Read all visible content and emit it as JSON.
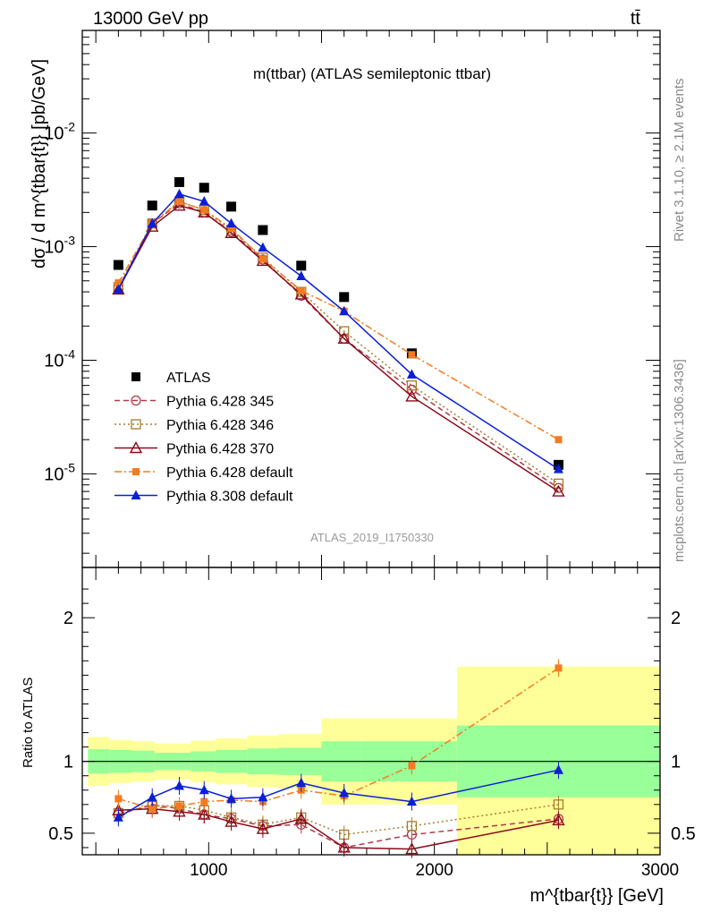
{
  "header": {
    "energy_label": "13000 GeV pp",
    "process_label": "tt̄",
    "plot_title": "m(ttbar) (ATLAS semileptonic ttbar)",
    "analysis_id": "ATLAS_2019_I1750330",
    "side_rivet": "Rivet 3.1.10, ≥ 2.1M events",
    "side_source": "mcplots.cern.ch [arXiv:1306.3436]"
  },
  "axes": {
    "main_ylabel": "dσ / d m^{tbar{t}} [pb/GeV]",
    "ratio_ylabel": "Ratio to ATLAS",
    "xlabel": "m^{tbar{t}} [GeV]"
  },
  "chart_data": [
    {
      "type": "scatter",
      "panel": "main",
      "title": "m(ttbar) (ATLAS semileptonic ttbar)",
      "xlabel": "m^{tbar{t}} [GeV]",
      "ylabel": "dσ / d m^{tbar{t}} [pb/GeV]",
      "yscale": "log",
      "xlim": [
        440,
        3000
      ],
      "ylim": [
        1.5e-06,
        0.08
      ],
      "ytick_labels": [
        "10^{-5}",
        "10^{-4}",
        "10^{-3}",
        "10^{-2}"
      ],
      "legend_position": "middle-left",
      "x": [
        600,
        750,
        870,
        980,
        1100,
        1240,
        1410,
        1600,
        1900,
        2550
      ],
      "series": [
        {
          "name": "ATLAS",
          "color": "#000000",
          "marker": "square-filled",
          "line": "none",
          "values": [
            0.00069,
            0.0023,
            0.0037,
            0.0033,
            0.00225,
            0.0014,
            0.00068,
            0.00036,
            0.000115,
            1.2e-05
          ]
        },
        {
          "name": "Pythia 6.428 345",
          "color": "#b03a48",
          "marker": "circle-open",
          "line": "dashed",
          "values": [
            0.00043,
            0.0016,
            0.0024,
            0.002,
            0.00135,
            0.00077,
            0.00037,
            0.000155,
            5.5e-05,
            7.5e-06
          ]
        },
        {
          "name": "Pythia 6.428 346",
          "color": "#a87b2c",
          "marker": "square-open",
          "line": "dotted",
          "values": [
            0.00044,
            0.0016,
            0.0025,
            0.0021,
            0.0014,
            0.0008,
            0.0004,
            0.00018,
            6e-05,
            8.2e-06
          ]
        },
        {
          "name": "Pythia 6.428 370",
          "color": "#8b0a1a",
          "marker": "triangle-open",
          "line": "solid",
          "values": [
            0.00042,
            0.0015,
            0.0023,
            0.002,
            0.00132,
            0.00075,
            0.00038,
            0.000155,
            4.8e-05,
            7e-06
          ]
        },
        {
          "name": "Pythia 6.428 default",
          "color": "#f47b20",
          "marker": "square-filled-small",
          "line": "dashdot",
          "values": [
            0.00048,
            0.0016,
            0.0025,
            0.0021,
            0.00145,
            0.00078,
            0.00041,
            0.00027,
            0.000112,
            2e-05
          ]
        },
        {
          "name": "Pythia 8.308 default",
          "color": "#0b1fd6",
          "marker": "triangle-filled",
          "line": "solid",
          "values": [
            0.00042,
            0.0016,
            0.0029,
            0.0025,
            0.0016,
            0.00098,
            0.00055,
            0.00027,
            7.5e-05,
            1.1e-05
          ]
        }
      ]
    },
    {
      "type": "line",
      "panel": "ratio",
      "xlabel": "m^{tbar{t}} [GeV]",
      "ylabel": "Ratio to ATLAS",
      "xlim": [
        440,
        3000
      ],
      "ylim": [
        0.35,
        2.35
      ],
      "ytick_labels": [
        "0.5",
        "1",
        "2"
      ],
      "xtick_labels": [
        "1000",
        "2000",
        "3000"
      ],
      "reference_line": 1,
      "bands": [
        {
          "x": [
            465,
            560,
            660,
            760,
            920,
            1030,
            1170,
            1310,
            1500,
            1680,
            2100,
            3000
          ],
          "green": [
            [
              0.915,
              1.085
            ],
            [
              0.92,
              1.08
            ],
            [
              0.925,
              1.075
            ],
            [
              0.94,
              1.06
            ],
            [
              0.93,
              1.07
            ],
            [
              0.92,
              1.08
            ],
            [
              0.91,
              1.09
            ],
            [
              0.905,
              1.095
            ],
            [
              0.86,
              1.14
            ],
            [
              0.86,
              1.14
            ],
            [
              0.75,
              1.25
            ]
          ],
          "yellow": [
            [
              0.83,
              1.17
            ],
            [
              0.85,
              1.15
            ],
            [
              0.86,
              1.14
            ],
            [
              0.875,
              1.125
            ],
            [
              0.855,
              1.145
            ],
            [
              0.84,
              1.16
            ],
            [
              0.82,
              1.18
            ],
            [
              0.81,
              1.19
            ],
            [
              0.7,
              1.3
            ],
            [
              0.7,
              1.3
            ],
            [
              0.35,
              1.66
            ]
          ]
        }
      ],
      "x": [
        600,
        750,
        870,
        980,
        1100,
        1240,
        1410,
        1600,
        1900,
        2550
      ],
      "series": [
        {
          "name": "Pythia 6.428 345",
          "color": "#b03a48",
          "values": [
            0.63,
            0.7,
            0.67,
            0.63,
            0.6,
            0.55,
            0.56,
            0.4,
            0.49,
            0.6
          ]
        },
        {
          "name": "Pythia 6.428 346",
          "color": "#a87b2c",
          "values": [
            0.64,
            0.69,
            0.69,
            0.66,
            0.61,
            0.56,
            0.61,
            0.49,
            0.55,
            0.7
          ]
        },
        {
          "name": "Pythia 6.428 370",
          "color": "#8b0a1a",
          "values": [
            0.66,
            0.67,
            0.65,
            0.63,
            0.58,
            0.53,
            0.6,
            0.4,
            0.39,
            0.59
          ]
        },
        {
          "name": "Pythia 6.428 default",
          "color": "#f47b20",
          "values": [
            0.74,
            0.67,
            0.69,
            0.72,
            0.73,
            0.72,
            0.8,
            0.76,
            0.97,
            1.65
          ]
        },
        {
          "name": "Pythia 8.308 default",
          "color": "#0b1fd6",
          "values": [
            0.61,
            0.75,
            0.83,
            0.8,
            0.74,
            0.75,
            0.85,
            0.78,
            0.72,
            0.94
          ]
        }
      ]
    }
  ]
}
